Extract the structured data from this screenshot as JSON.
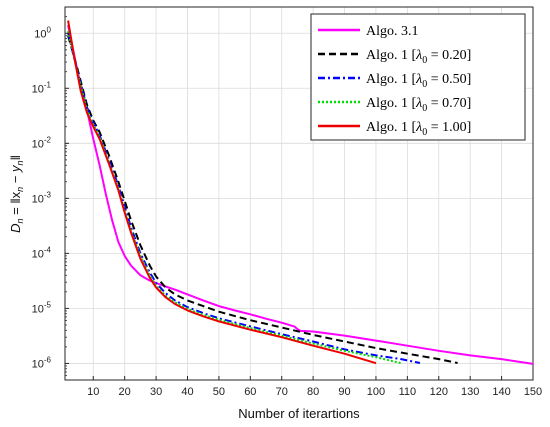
{
  "chart_data": {
    "type": "line",
    "title": "",
    "xlabel": "Number of iterartions",
    "ylabel": "D_n = ||x_n − y_n||",
    "ylabel_parts": {
      "lhs": "D",
      "sub": "n",
      "rhs": " = ‖x",
      "sub2": "n",
      "mid": " − y",
      "sub3": "n",
      "end": "‖"
    },
    "xlim": [
      1,
      150
    ],
    "ylim": [
      5e-07,
      3
    ],
    "yscale": "log",
    "grid": true,
    "legend_position": "top-right",
    "x_ticks": [
      10,
      20,
      30,
      40,
      50,
      60,
      70,
      80,
      90,
      100,
      110,
      120,
      130,
      140,
      150
    ],
    "y_ticks": [
      {
        "exp": -6,
        "label_base": "10",
        "label_exp": "-6"
      },
      {
        "exp": -5,
        "label_base": "10",
        "label_exp": "-5"
      },
      {
        "exp": -4,
        "label_base": "10",
        "label_exp": "-4"
      },
      {
        "exp": -3,
        "label_base": "10",
        "label_exp": "-3"
      },
      {
        "exp": -2,
        "label_base": "10",
        "label_exp": "-2"
      },
      {
        "exp": -1,
        "label_base": "10",
        "label_exp": "-1"
      },
      {
        "exp": 0,
        "label_base": "10",
        "label_exp": "0"
      }
    ],
    "series": [
      {
        "name": "Algo. 3.1",
        "color": "#ff00ff",
        "dash": "solid",
        "x": [
          2,
          5,
          8,
          10,
          12,
          14,
          16,
          18,
          20,
          22,
          25,
          28,
          30,
          33,
          36,
          40,
          45,
          50,
          55,
          60,
          65,
          70,
          74,
          75,
          76,
          80,
          90,
          100,
          110,
          120,
          130,
          140,
          150
        ],
        "y": [
          1.4,
          0.2,
          0.04,
          0.012,
          0.004,
          0.0012,
          0.0004,
          0.00016,
          9e-05,
          6e-05,
          4e-05,
          3.2e-05,
          2.9e-05,
          2.5e-05,
          2.2e-05,
          1.8e-05,
          1.4e-05,
          1.1e-05,
          9.2e-06,
          7.8e-06,
          6.5e-06,
          5.5e-06,
          4.7e-06,
          4.2e-06,
          3.9e-06,
          3.8e-06,
          3.2e-06,
          2.6e-06,
          2.1e-06,
          1.7e-06,
          1.4e-06,
          1.2e-06,
          9.8e-07
        ]
      },
      {
        "name": "Algo. 1 [λ0 = 0.20]",
        "label_prefix": "Algo. 1 [",
        "lambda": "0.20",
        "color": "#000000",
        "dash": "7,4",
        "x": [
          2,
          5,
          8,
          10,
          12,
          15,
          18,
          20,
          22,
          25,
          28,
          30,
          33,
          36,
          40,
          45,
          50,
          60,
          70,
          80,
          90,
          100,
          110,
          120,
          126
        ],
        "y": [
          0.9,
          0.22,
          0.05,
          0.026,
          0.016,
          0.006,
          0.002,
          0.0009,
          0.0004,
          0.00014,
          6e-05,
          3.8e-05,
          2.4e-05,
          1.8e-05,
          1.4e-05,
          1.1e-05,
          8.7e-06,
          6.1e-06,
          4.5e-06,
          3.3e-06,
          2.5e-06,
          1.9e-06,
          1.5e-06,
          1.2e-06,
          1.02e-06
        ]
      },
      {
        "name": "Algo. 1 [λ0 = 0.50]",
        "label_prefix": "Algo. 1 [",
        "lambda": "0.50",
        "color": "#0000ff",
        "dash": "7,3,2,3",
        "x": [
          2,
          5,
          8,
          10,
          12,
          15,
          18,
          20,
          22,
          25,
          28,
          30,
          33,
          36,
          40,
          45,
          50,
          60,
          70,
          80,
          90,
          100,
          108,
          114
        ],
        "y": [
          1.0,
          0.2,
          0.045,
          0.024,
          0.014,
          0.005,
          0.0017,
          0.0007,
          0.0003,
          0.0001,
          4.5e-05,
          2.9e-05,
          1.9e-05,
          1.4e-05,
          1.05e-05,
          8.2e-06,
          6.6e-06,
          4.7e-06,
          3.4e-06,
          2.5e-06,
          1.8e-06,
          1.4e-06,
          1.2e-06,
          1.02e-06
        ]
      },
      {
        "name": "Algo. 1 [λ0 = 0.70]",
        "label_prefix": "Algo. 1 [",
        "lambda": "0.70",
        "color": "#00dd00",
        "dash": "2,2",
        "x": [
          2,
          5,
          8,
          10,
          12,
          15,
          18,
          20,
          22,
          25,
          28,
          30,
          33,
          36,
          40,
          45,
          50,
          60,
          70,
          80,
          90,
          100,
          108
        ],
        "y": [
          1.1,
          0.19,
          0.04,
          0.022,
          0.013,
          0.0045,
          0.0015,
          0.0006,
          0.00026,
          9e-05,
          4e-05,
          2.6e-05,
          1.7e-05,
          1.3e-05,
          9.8e-06,
          7.7e-06,
          6.2e-06,
          4.4e-06,
          3.2e-06,
          2.3e-06,
          1.7e-06,
          1.3e-06,
          1.01e-06
        ]
      },
      {
        "name": "Algo. 1 [λ0 = 1.00]",
        "label_prefix": "Algo. 1 [",
        "lambda": "1.00",
        "color": "#ee0000",
        "dash": "solid",
        "x": [
          2,
          4,
          6,
          8,
          10,
          12,
          15,
          18,
          20,
          22,
          25,
          28,
          30,
          33,
          36,
          40,
          45,
          50,
          60,
          70,
          80,
          90,
          100
        ],
        "y": [
          1.7,
          0.35,
          0.09,
          0.036,
          0.02,
          0.012,
          0.0042,
          0.0014,
          0.00055,
          0.00024,
          8e-05,
          3.6e-05,
          2.4e-05,
          1.6e-05,
          1.2e-05,
          9.2e-06,
          7.2e-06,
          5.8e-06,
          4.1e-06,
          3e-06,
          2.1e-06,
          1.5e-06,
          1.01e-06
        ]
      }
    ]
  }
}
